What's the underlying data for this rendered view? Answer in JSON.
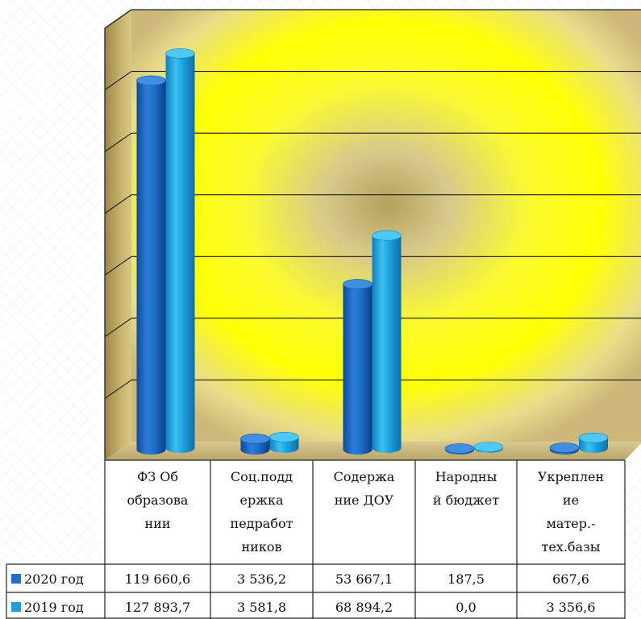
{
  "chart_data": {
    "type": "bar",
    "categories": [
      [
        "ФЗ Об",
        "образова",
        "нии"
      ],
      [
        "Соц.подд",
        "ержка",
        "педработ",
        "ников"
      ],
      [
        "Содержа",
        "ние ДОУ"
      ],
      [
        "Народны",
        "й бюджет"
      ],
      [
        "Укреплен",
        "ие",
        "матер.-",
        "тех.базы"
      ]
    ],
    "series": [
      {
        "name": "2020 год",
        "values": [
          119660.6,
          3536.2,
          53667.1,
          187.5,
          667.6
        ],
        "labels": [
          "119 660,6",
          "3 536,2",
          "53 667,1",
          "187,5",
          "667,6"
        ],
        "color": "#1f6fc8"
      },
      {
        "name": "2019 год",
        "values": [
          127893.7,
          3581.8,
          68894.2,
          0.0,
          3356.6
        ],
        "labels": [
          "127 893,7",
          "3 581,8",
          "68 894,2",
          "0,0",
          "3 356,6"
        ],
        "color": "#1ca0dc"
      }
    ],
    "ylim": [
      0,
      140000
    ],
    "grid": true,
    "legend": "data-table"
  }
}
